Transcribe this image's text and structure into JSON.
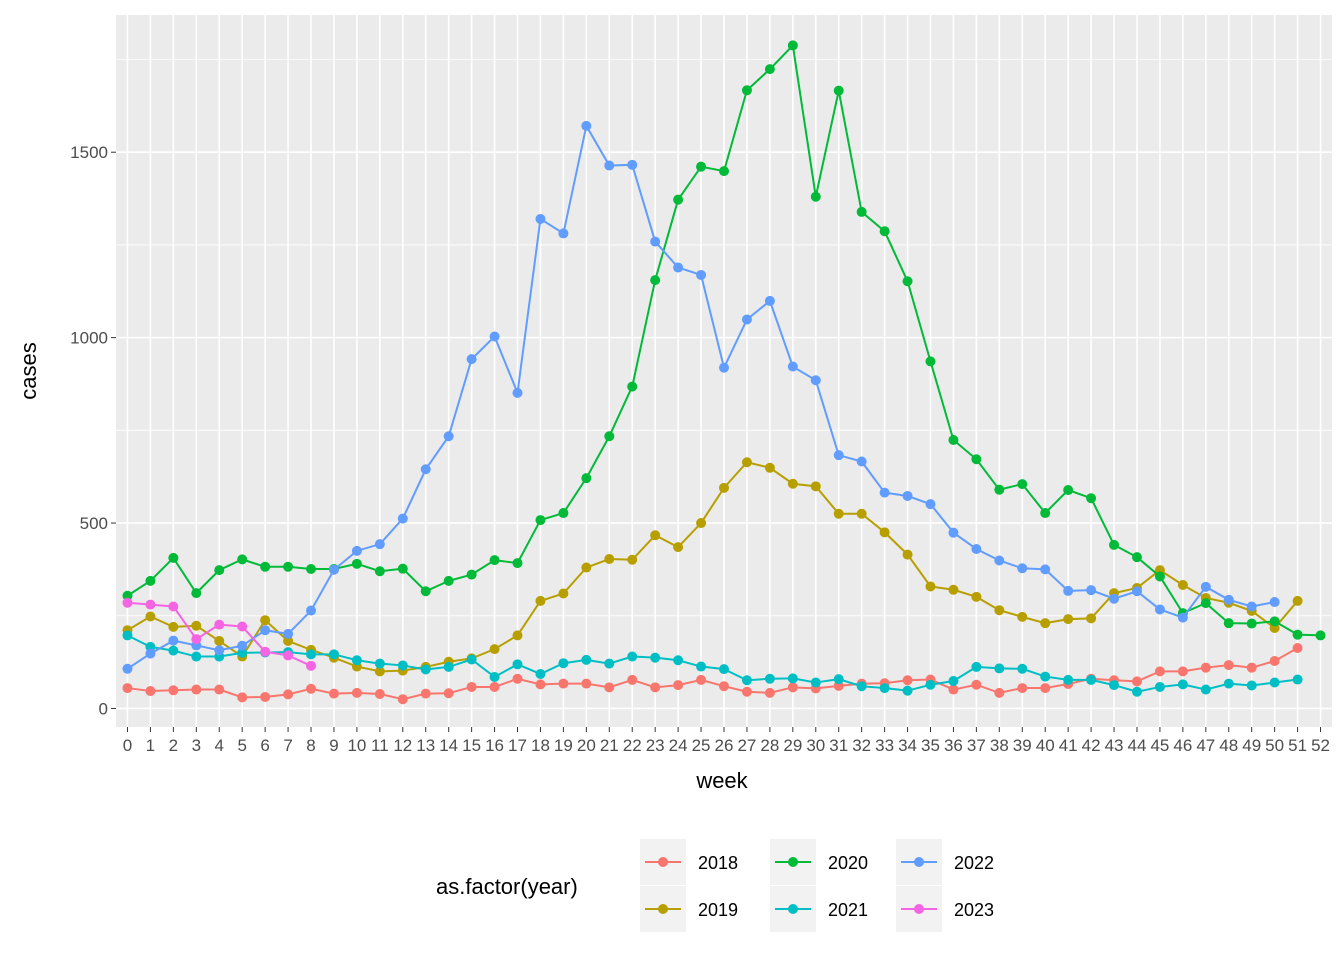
{
  "chart_data": {
    "type": "line",
    "xlabel": "week",
    "ylabel": "cases",
    "xlim": [
      0,
      52
    ],
    "ylim": [
      -50,
      1870
    ],
    "yticks": [
      0,
      500,
      1000,
      1500
    ],
    "grid": true,
    "legend": {
      "title": "as.factor(year)",
      "placement": "bottom"
    },
    "series": [
      {
        "name": "2018",
        "color": "#F8766D",
        "x": [
          0,
          1,
          2,
          3,
          4,
          5,
          6,
          7,
          8,
          9,
          10,
          11,
          12,
          13,
          14,
          15,
          16,
          17,
          18,
          19,
          20,
          21,
          22,
          23,
          24,
          25,
          26,
          27,
          28,
          29,
          30,
          31,
          32,
          33,
          34,
          35,
          36,
          37,
          38,
          39,
          40,
          41,
          42,
          43,
          44,
          45,
          46,
          47,
          48,
          49,
          50,
          51
        ],
        "values": [
          55,
          47,
          49,
          51,
          51,
          30,
          31,
          38,
          53,
          40,
          42,
          39,
          25,
          40,
          41,
          58,
          58,
          80,
          65,
          67,
          67,
          57,
          77,
          57,
          63,
          77,
          60,
          45,
          42,
          57,
          54,
          61,
          67,
          68,
          76,
          78,
          51,
          64,
          42,
          55,
          55,
          66,
          80,
          76,
          73,
          100,
          100,
          110,
          117,
          110,
          128,
          163
        ]
      },
      {
        "name": "2019",
        "color": "#B79F00",
        "x": [
          0,
          1,
          2,
          3,
          4,
          5,
          6,
          7,
          8,
          9,
          10,
          11,
          12,
          13,
          14,
          15,
          16,
          17,
          18,
          19,
          20,
          21,
          22,
          23,
          24,
          25,
          26,
          27,
          28,
          29,
          30,
          31,
          32,
          33,
          34,
          35,
          36,
          37,
          38,
          39,
          40,
          41,
          42,
          43,
          44,
          45,
          46,
          47,
          48,
          49,
          50,
          51
        ],
        "values": [
          211,
          248,
          220,
          223,
          182,
          140,
          238,
          182,
          158,
          137,
          113,
          100,
          102,
          112,
          126,
          135,
          160,
          197,
          290,
          310,
          380,
          403,
          401,
          467,
          435,
          500,
          595,
          664,
          649,
          606,
          599,
          525,
          525,
          475,
          415,
          329,
          320,
          301,
          265,
          247,
          230,
          241,
          243,
          311,
          325,
          373,
          333,
          298,
          285,
          263,
          217,
          290
        ]
      },
      {
        "name": "2020",
        "color": "#00BA38",
        "x": [
          0,
          1,
          2,
          3,
          4,
          5,
          6,
          7,
          8,
          9,
          10,
          11,
          12,
          13,
          14,
          15,
          16,
          17,
          18,
          19,
          20,
          21,
          22,
          23,
          24,
          25,
          26,
          27,
          28,
          29,
          30,
          31,
          32,
          33,
          34,
          35,
          36,
          37,
          38,
          39,
          40,
          41,
          42,
          43,
          44,
          45,
          46,
          47,
          48,
          49,
          50,
          51,
          52
        ],
        "values": [
          304,
          344,
          406,
          311,
          373,
          402,
          382,
          382,
          376,
          376,
          390,
          370,
          377,
          316,
          344,
          361,
          400,
          392,
          508,
          527,
          621,
          734,
          868,
          1155,
          1372,
          1461,
          1449,
          1667,
          1724,
          1788,
          1380,
          1666,
          1339,
          1287,
          1152,
          936,
          724,
          672,
          590,
          605,
          527,
          589,
          567,
          441,
          408,
          356,
          257,
          284,
          230,
          229,
          235,
          199,
          197
        ]
      },
      {
        "name": "2021",
        "color": "#00BFC4",
        "x": [
          0,
          1,
          2,
          3,
          4,
          5,
          6,
          7,
          8,
          9,
          10,
          11,
          12,
          13,
          14,
          15,
          16,
          17,
          18,
          19,
          20,
          21,
          22,
          23,
          24,
          25,
          26,
          27,
          28,
          29,
          30,
          31,
          32,
          33,
          34,
          35,
          36,
          37,
          38,
          39,
          40,
          41,
          42,
          43,
          44,
          45,
          46,
          47,
          48,
          49,
          50,
          51
        ],
        "values": [
          197,
          166,
          156,
          140,
          140,
          150,
          151,
          152,
          146,
          146,
          130,
          121,
          116,
          105,
          112,
          132,
          85,
          119,
          93,
          122,
          131,
          121,
          140,
          137,
          130,
          113,
          106,
          76,
          80,
          81,
          70,
          79,
          60,
          55,
          48,
          64,
          74,
          112,
          108,
          107,
          86,
          77,
          77,
          63,
          45,
          58,
          65,
          51,
          67,
          62,
          70,
          78
        ]
      },
      {
        "name": "2022",
        "color": "#619CFF",
        "x": [
          0,
          1,
          2,
          3,
          4,
          5,
          6,
          7,
          8,
          9,
          10,
          11,
          12,
          13,
          14,
          15,
          16,
          17,
          18,
          19,
          20,
          21,
          22,
          23,
          24,
          25,
          26,
          27,
          28,
          29,
          30,
          31,
          32,
          33,
          34,
          35,
          36,
          37,
          38,
          39,
          40,
          41,
          42,
          43,
          44,
          45,
          46,
          47,
          48,
          49,
          50
        ],
        "values": [
          107,
          148,
          183,
          170,
          157,
          169,
          211,
          201,
          264,
          374,
          425,
          443,
          512,
          645,
          734,
          942,
          1003,
          851,
          1320,
          1281,
          1571,
          1464,
          1466,
          1259,
          1189,
          1169,
          919,
          1049,
          1099,
          922,
          885,
          683,
          666,
          582,
          573,
          551,
          474,
          430,
          399,
          378,
          375,
          317,
          319,
          296,
          316,
          267,
          245,
          328,
          293,
          275,
          287
        ]
      },
      {
        "name": "2023",
        "color": "#F564E3",
        "x": [
          0,
          1,
          2,
          3,
          4,
          5,
          6,
          7,
          8
        ],
        "values": [
          285,
          280,
          275,
          187,
          226,
          221,
          153,
          143,
          115
        ]
      }
    ]
  }
}
